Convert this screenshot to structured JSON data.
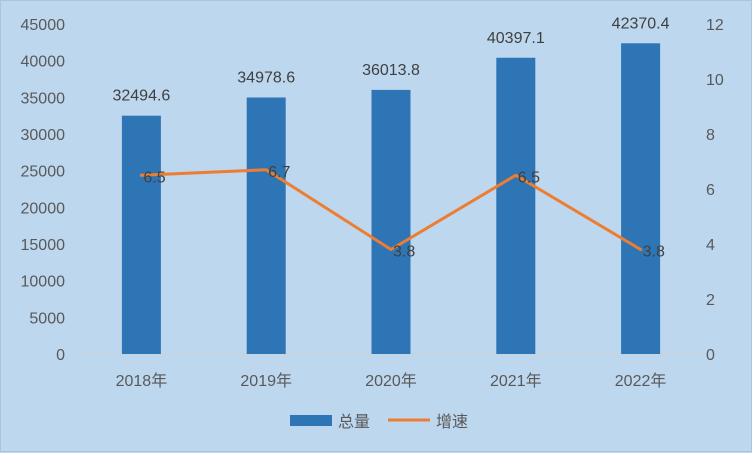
{
  "chart_data": {
    "type": "bar",
    "categories": [
      "2018年",
      "2019年",
      "2020年",
      "2021年",
      "2022年"
    ],
    "series": [
      {
        "name": "总量",
        "type": "bar",
        "axis": "left",
        "values": [
          32494.6,
          34978.6,
          36013.8,
          40397.1,
          42370.4
        ],
        "labels": [
          "32494.6",
          "34978.6",
          "36013.8",
          "40397.1",
          "42370.4"
        ],
        "color": "#2e75b6"
      },
      {
        "name": "增速",
        "type": "line",
        "axis": "right",
        "values": [
          6.5,
          6.7,
          3.8,
          6.5,
          3.8
        ],
        "labels": [
          "6.5",
          "6.7",
          "3.8",
          "6.5",
          "3.8"
        ],
        "color": "#ed7d31"
      }
    ],
    "y_left": {
      "min": 0,
      "max": 45000,
      "step": 5000,
      "ticks": [
        "0",
        "5000",
        "10000",
        "15000",
        "20000",
        "25000",
        "30000",
        "35000",
        "40000",
        "45000"
      ]
    },
    "y_right": {
      "min": 0,
      "max": 12,
      "step": 2,
      "ticks": [
        "0",
        "2",
        "4",
        "6",
        "8",
        "10",
        "12"
      ]
    },
    "grid": false,
    "legend_position": "bottom",
    "background": "#bdd7ee"
  }
}
